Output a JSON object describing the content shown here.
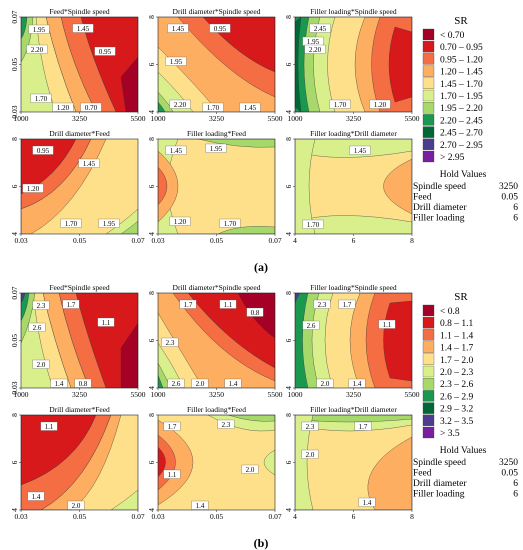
{
  "figure": {
    "parts": [
      {
        "caption": "(a)",
        "legend": {
          "title": "SR",
          "entries": [
            {
              "label": "< 0.70",
              "color": "#a50026"
            },
            {
              "label": "0.70 – 0.95",
              "color": "#d7191c"
            },
            {
              "label": "0.95 – 1.20",
              "color": "#f46d43"
            },
            {
              "label": "1.20 – 1.45",
              "color": "#fdae61"
            },
            {
              "label": "1.45 – 1.70",
              "color": "#fee08b"
            },
            {
              "label": "1.70 – 1.95",
              "color": "#d9ef8b"
            },
            {
              "label": "1.95 – 2.20",
              "color": "#a6d96a"
            },
            {
              "label": "2.20 – 2.45",
              "color": "#1a9850"
            },
            {
              "label": "2.45 – 2.70",
              "color": "#006837"
            },
            {
              "label": "2.70 – 2.95",
              "color": "#4d3d8f"
            },
            {
              "label": "> 2.95",
              "color": "#7a1fa2"
            }
          ]
        },
        "hold": {
          "title": "Hold Values",
          "rows": [
            {
              "name": "Spindle speed",
              "value": "3250"
            },
            {
              "name": "Feed",
              "value": "0.05"
            },
            {
              "name": "Drill diameter",
              "value": "6"
            },
            {
              "name": "Filler loading",
              "value": "6"
            }
          ]
        },
        "panels": [
          {
            "title": "Feed*Spindle speed",
            "xticks": [
              "1000",
              "3250",
              "5500"
            ],
            "yticks": [
              "0.07",
              "0.05",
              "0.03"
            ],
            "labels": [
              "1.95",
              "1.45",
              "2.20",
              "0.95",
              "1.70",
              "1.20",
              "0.70"
            ]
          },
          {
            "title": "Drill diameter*Spindle speed",
            "xticks": [
              "1000",
              "3250",
              "5500"
            ],
            "yticks": [
              "8",
              "6",
              "4"
            ],
            "labels": [
              "1.45",
              "0.95",
              "1.95",
              "2.20",
              "1.70",
              "1.45"
            ]
          },
          {
            "title": "Filler loading*Spindle speed",
            "xticks": [
              "1000",
              "3250",
              "5500"
            ],
            "yticks": [
              "8",
              "6",
              "4"
            ],
            "labels": [
              "2.45",
              "1.95",
              "2.20",
              "1.70",
              "1.20"
            ]
          },
          {
            "title": "Drill diameter*Feed",
            "xticks": [
              "0.03",
              "0.05",
              "0.07"
            ],
            "yticks": [
              "8",
              "6",
              "4"
            ],
            "labels": [
              "0.95",
              "1.45",
              "1.20",
              "1.70",
              "1.95"
            ]
          },
          {
            "title": "Filler loading*Feed",
            "xticks": [
              "0.03",
              "0.05",
              "0.07"
            ],
            "yticks": [
              "8",
              "6",
              "4"
            ],
            "labels": [
              "1.45",
              "1.95",
              "1.20",
              "1.70"
            ]
          },
          {
            "title": "Filler loading*Drill diameter",
            "xticks": [
              "4",
              "6",
              "8"
            ],
            "yticks": [
              "8",
              "6",
              "4"
            ],
            "labels": [
              "1.45",
              "1.70"
            ]
          }
        ]
      },
      {
        "caption": "(b)",
        "legend": {
          "title": "SR",
          "entries": [
            {
              "label": "< 0.8",
              "color": "#a50026"
            },
            {
              "label": "0.8 – 1.1",
              "color": "#d7191c"
            },
            {
              "label": "1.1 – 1.4",
              "color": "#f46d43"
            },
            {
              "label": "1.4 – 1.7",
              "color": "#fdae61"
            },
            {
              "label": "1.7 – 2.0",
              "color": "#fee08b"
            },
            {
              "label": "2.0 – 2.3",
              "color": "#d9ef8b"
            },
            {
              "label": "2.3 – 2.6",
              "color": "#a6d96a"
            },
            {
              "label": "2.6 – 2.9",
              "color": "#1a9850"
            },
            {
              "label": "2.9 – 3.2",
              "color": "#006837"
            },
            {
              "label": "3.2 – 3.5",
              "color": "#4d3d8f"
            },
            {
              "label": "> 3.5",
              "color": "#7a1fa2"
            }
          ]
        },
        "hold": {
          "title": "Hold Values",
          "rows": [
            {
              "name": "Spindle speed",
              "value": "3250"
            },
            {
              "name": "Feed",
              "value": "0.05"
            },
            {
              "name": "Drill diameter",
              "value": "6"
            },
            {
              "name": "Filler loading",
              "value": "6"
            }
          ]
        },
        "panels": [
          {
            "title": "Feed*Spindle speed",
            "xticks": [
              "1000",
              "3250",
              "5500"
            ],
            "yticks": [
              "0.07",
              "0.05",
              "0.03"
            ],
            "labels": [
              "2.3",
              "1.7",
              "2.6",
              "1.1",
              "2.0",
              "1.4",
              "0.8"
            ]
          },
          {
            "title": "Drill diameter*Spindle speed",
            "xticks": [
              "1000",
              "3250",
              "5500"
            ],
            "yticks": [
              "8",
              "6",
              "4"
            ],
            "labels": [
              "1.7",
              "1.1",
              "0.8",
              "2.3",
              "2.6",
              "2.0",
              "1.4"
            ]
          },
          {
            "title": "Filler loading*Spindle speed",
            "xticks": [
              "1000",
              "3250",
              "5500"
            ],
            "yticks": [
              "8",
              "6",
              "4"
            ],
            "labels": [
              "2.3",
              "1.7",
              "2.6",
              "1.1",
              "2.0",
              "1.4"
            ]
          },
          {
            "title": "Drill diameter*Feed",
            "xticks": [
              "0.03",
              "0.05",
              "0.07"
            ],
            "yticks": [
              "8",
              "6",
              "4"
            ],
            "labels": [
              "1.1",
              "1.4",
              "2.0"
            ]
          },
          {
            "title": "Filler loading*Feed",
            "xticks": [
              "0.03",
              "0.05",
              "0.07"
            ],
            "yticks": [
              "8",
              "6",
              "4"
            ],
            "labels": [
              "1.7",
              "2.3",
              "2.0",
              "1.1",
              "1.4"
            ]
          },
          {
            "title": "Filler loading*Drill diameter",
            "xticks": [
              "4",
              "6",
              "8"
            ],
            "yticks": [
              "8",
              "6",
              "4"
            ],
            "labels": [
              "2.3",
              "1.7",
              "2.0",
              "1.4"
            ]
          }
        ]
      }
    ]
  },
  "chart_data": [
    {
      "type": "heatmap",
      "caption": "(a)",
      "legend_title": "SR",
      "legend_placement": "right",
      "color_bins": [
        "< 0.70",
        "0.70 – 0.95",
        "0.95 – 1.20",
        "1.20 – 1.45",
        "1.45 – 1.70",
        "1.70 – 1.95",
        "1.95 – 2.20",
        "2.20 – 2.45",
        "2.45 – 2.70",
        "2.70 – 2.95",
        "> 2.95"
      ],
      "hold_values": {
        "Spindle speed": 3250,
        "Feed": 0.05,
        "Drill diameter": 6,
        "Filler loading": 6
      },
      "panels": [
        {
          "title": "Feed*Spindle speed",
          "x_range": [
            1000,
            5500
          ],
          "y_range": [
            0.03,
            0.07
          ],
          "contour_levels_shown": [
            0.7,
            0.95,
            1.2,
            1.45,
            1.7,
            1.95,
            2.2
          ]
        },
        {
          "title": "Drill diameter*Spindle speed",
          "x_range": [
            1000,
            5500
          ],
          "y_range": [
            4,
            8
          ],
          "contour_levels_shown": [
            0.95,
            1.45,
            1.7,
            1.95,
            2.2
          ]
        },
        {
          "title": "Filler loading*Spindle speed",
          "x_range": [
            1000,
            5500
          ],
          "y_range": [
            4,
            8
          ],
          "contour_levels_shown": [
            1.2,
            1.7,
            1.95,
            2.2,
            2.45
          ]
        },
        {
          "title": "Drill diameter*Feed",
          "x_range": [
            0.03,
            0.07
          ],
          "y_range": [
            4,
            8
          ],
          "contour_levels_shown": [
            0.95,
            1.2,
            1.45,
            1.7,
            1.95
          ]
        },
        {
          "title": "Filler loading*Feed",
          "x_range": [
            0.03,
            0.07
          ],
          "y_range": [
            4,
            8
          ],
          "contour_levels_shown": [
            1.2,
            1.45,
            1.7,
            1.95
          ]
        },
        {
          "title": "Filler loading*Drill diameter",
          "x_range": [
            4,
            8
          ],
          "y_range": [
            4,
            8
          ],
          "contour_levels_shown": [
            1.45,
            1.7
          ]
        }
      ]
    },
    {
      "type": "heatmap",
      "caption": "(b)",
      "legend_title": "SR",
      "legend_placement": "right",
      "color_bins": [
        "< 0.8",
        "0.8 – 1.1",
        "1.1 – 1.4",
        "1.4 – 1.7",
        "1.7 – 2.0",
        "2.0 – 2.3",
        "2.3 – 2.6",
        "2.6 – 2.9",
        "2.9 – 3.2",
        "3.2 – 3.5",
        "> 3.5"
      ],
      "hold_values": {
        "Spindle speed": 3250,
        "Feed": 0.05,
        "Drill diameter": 6,
        "Filler loading": 6
      },
      "panels": [
        {
          "title": "Feed*Spindle speed",
          "x_range": [
            1000,
            5500
          ],
          "y_range": [
            0.03,
            0.07
          ],
          "contour_levels_shown": [
            0.8,
            1.1,
            1.4,
            1.7,
            2.0,
            2.3,
            2.6
          ]
        },
        {
          "title": "Drill diameter*Spindle speed",
          "x_range": [
            1000,
            5500
          ],
          "y_range": [
            4,
            8
          ],
          "contour_levels_shown": [
            0.8,
            1.1,
            1.4,
            1.7,
            2.0,
            2.3,
            2.6
          ]
        },
        {
          "title": "Filler loading*Spindle speed",
          "x_range": [
            1000,
            5500
          ],
          "y_range": [
            4,
            8
          ],
          "contour_levels_shown": [
            1.1,
            1.4,
            1.7,
            2.0,
            2.3,
            2.6
          ]
        },
        {
          "title": "Drill diameter*Feed",
          "x_range": [
            0.03,
            0.07
          ],
          "y_range": [
            4,
            8
          ],
          "contour_levels_shown": [
            1.1,
            1.4,
            2.0
          ]
        },
        {
          "title": "Filler loading*Feed",
          "x_range": [
            0.03,
            0.07
          ],
          "y_range": [
            4,
            8
          ],
          "contour_levels_shown": [
            1.1,
            1.4,
            1.7,
            2.0,
            2.3
          ]
        },
        {
          "title": "Filler loading*Drill diameter",
          "x_range": [
            4,
            8
          ],
          "y_range": [
            4,
            8
          ],
          "contour_levels_shown": [
            1.4,
            1.7,
            2.0,
            2.3
          ]
        }
      ]
    }
  ]
}
